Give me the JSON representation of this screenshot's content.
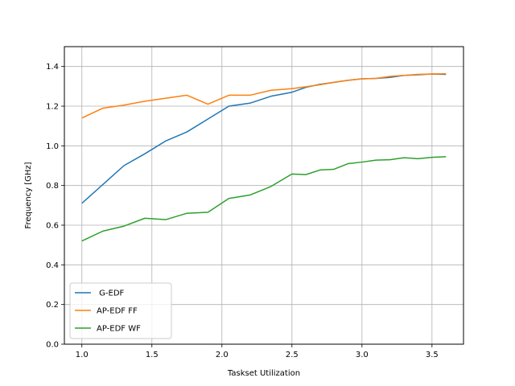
{
  "chart_data": {
    "type": "line",
    "title": "",
    "xlabel": "Taskset Utilization",
    "ylabel": "Frequency [GHz]",
    "xlim": [
      0.875,
      3.725
    ],
    "ylim": [
      0.0,
      1.5
    ],
    "xticks": [
      1.0,
      1.5,
      2.0,
      2.5,
      3.0,
      3.5
    ],
    "xtick_labels": [
      "1.0",
      "1.5",
      "2.0",
      "2.5",
      "3.0",
      "3.5"
    ],
    "yticks": [
      0.0,
      0.2,
      0.4,
      0.6,
      0.8,
      1.0,
      1.2,
      1.4
    ],
    "ytick_labels": [
      "0.0",
      "0.2",
      "0.4",
      "0.6",
      "0.8",
      "1.0",
      "1.2",
      "1.4"
    ],
    "grid": true,
    "legend_position": "lower-left",
    "x": [
      1.0,
      1.15,
      1.3,
      1.45,
      1.6,
      1.75,
      1.9,
      2.05,
      2.2,
      2.35,
      2.5,
      2.6,
      2.7,
      2.8,
      2.9,
      3.0,
      3.1,
      3.2,
      3.3,
      3.4,
      3.5,
      3.6
    ],
    "series": [
      {
        "name": " G-EDF",
        "color": "#1f77b4",
        "values": [
          0.71,
          0.805,
          0.9,
          0.96,
          1.025,
          1.07,
          1.135,
          1.2,
          1.215,
          1.25,
          1.27,
          1.295,
          1.31,
          1.32,
          1.33,
          1.338,
          1.34,
          1.345,
          1.355,
          1.358,
          1.362,
          1.36
        ]
      },
      {
        "name": "AP-EDF FF",
        "color": "#ff7f0e",
        "values": [
          1.14,
          1.19,
          1.205,
          1.225,
          1.24,
          1.255,
          1.21,
          1.255,
          1.255,
          1.28,
          1.288,
          1.298,
          1.308,
          1.32,
          1.33,
          1.338,
          1.34,
          1.35,
          1.355,
          1.36,
          1.362,
          1.363
        ]
      },
      {
        "name": "AP-EDF WF",
        "color": "#2ca02c",
        "values": [
          0.52,
          0.57,
          0.595,
          0.635,
          0.628,
          0.66,
          0.665,
          0.735,
          0.752,
          0.795,
          0.858,
          0.855,
          0.878,
          0.882,
          0.91,
          0.918,
          0.928,
          0.93,
          0.94,
          0.935,
          0.942,
          0.945
        ]
      }
    ]
  }
}
